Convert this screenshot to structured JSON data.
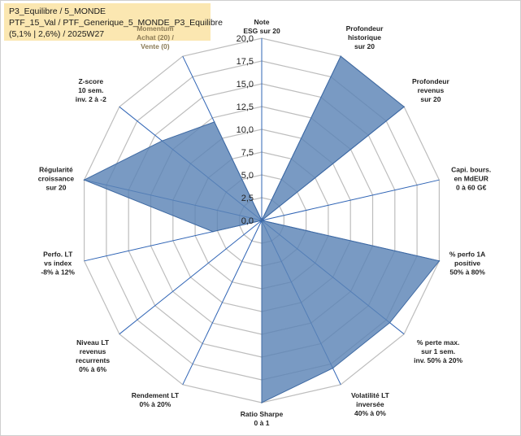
{
  "info_box": {
    "line1": "P3_Equilibre / 5_MONDE",
    "line2": "PTF_15_Val / PTF_Generique_5_MONDE_P3_Equilibre",
    "line3": "(5,1% | 2,6%) / 2025W27"
  },
  "colors": {
    "fill": "#5b84b6",
    "stroke": "#3f6aa3",
    "grid": "#bdbdbd",
    "spoke": "#2f64b5",
    "accent_label": "#8a7a55"
  },
  "chart_data": {
    "type": "radar",
    "rmin": 0,
    "rmax": 20,
    "grid": true,
    "tick_labels": [
      "0,0",
      "2,5",
      "5,0",
      "7,5",
      "10,0",
      "12,5",
      "15,0",
      "17,5",
      "20,0"
    ],
    "categories": [
      {
        "label": [
          "Note",
          "ESG sur 20"
        ],
        "value": 0,
        "accent": false
      },
      {
        "label": [
          "Profondeur",
          "historique",
          "sur 20"
        ],
        "value": 20,
        "accent": false
      },
      {
        "label": [
          "Profondeur",
          "revenus",
          "sur 20"
        ],
        "value": 20,
        "accent": false
      },
      {
        "label": [
          "Capi. bours.",
          "en MdEUR",
          "0 à 60 G€"
        ],
        "value": 0,
        "accent": false
      },
      {
        "label": [
          "% perfo 1A",
          "positive",
          "50% à 80%"
        ],
        "value": 20,
        "accent": false
      },
      {
        "label": [
          "% perte max.",
          "sur 1 sem.",
          "inv. 50% à 20%"
        ],
        "value": 18,
        "accent": false
      },
      {
        "label": [
          "Volatilité LT",
          "inversée",
          "40% à 0%"
        ],
        "value": 18,
        "accent": false
      },
      {
        "label": [
          "Ratio Sharpe",
          "0 à 1"
        ],
        "value": 20,
        "accent": false
      },
      {
        "label": [
          "Rendement LT",
          "0% à 20%"
        ],
        "value": 0,
        "accent": false
      },
      {
        "label": [
          "Niveau LT",
          "revenus",
          "recurrents",
          "0% à 6%"
        ],
        "value": 0,
        "accent": false
      },
      {
        "label": [
          "Perfo. LT",
          "vs index",
          "-8% à 12%"
        ],
        "value": 5.5,
        "accent": false
      },
      {
        "label": [
          "Régularité",
          "croissance",
          "sur 20"
        ],
        "value": 20,
        "accent": false
      },
      {
        "label": [
          "Z-score",
          "10 sem.",
          "inv. 2 à -2"
        ],
        "value": 14,
        "accent": false
      },
      {
        "label": [
          "Momentum",
          "Achat (20) /",
          "Vente (0)"
        ],
        "value": 12,
        "accent": true
      }
    ]
  }
}
